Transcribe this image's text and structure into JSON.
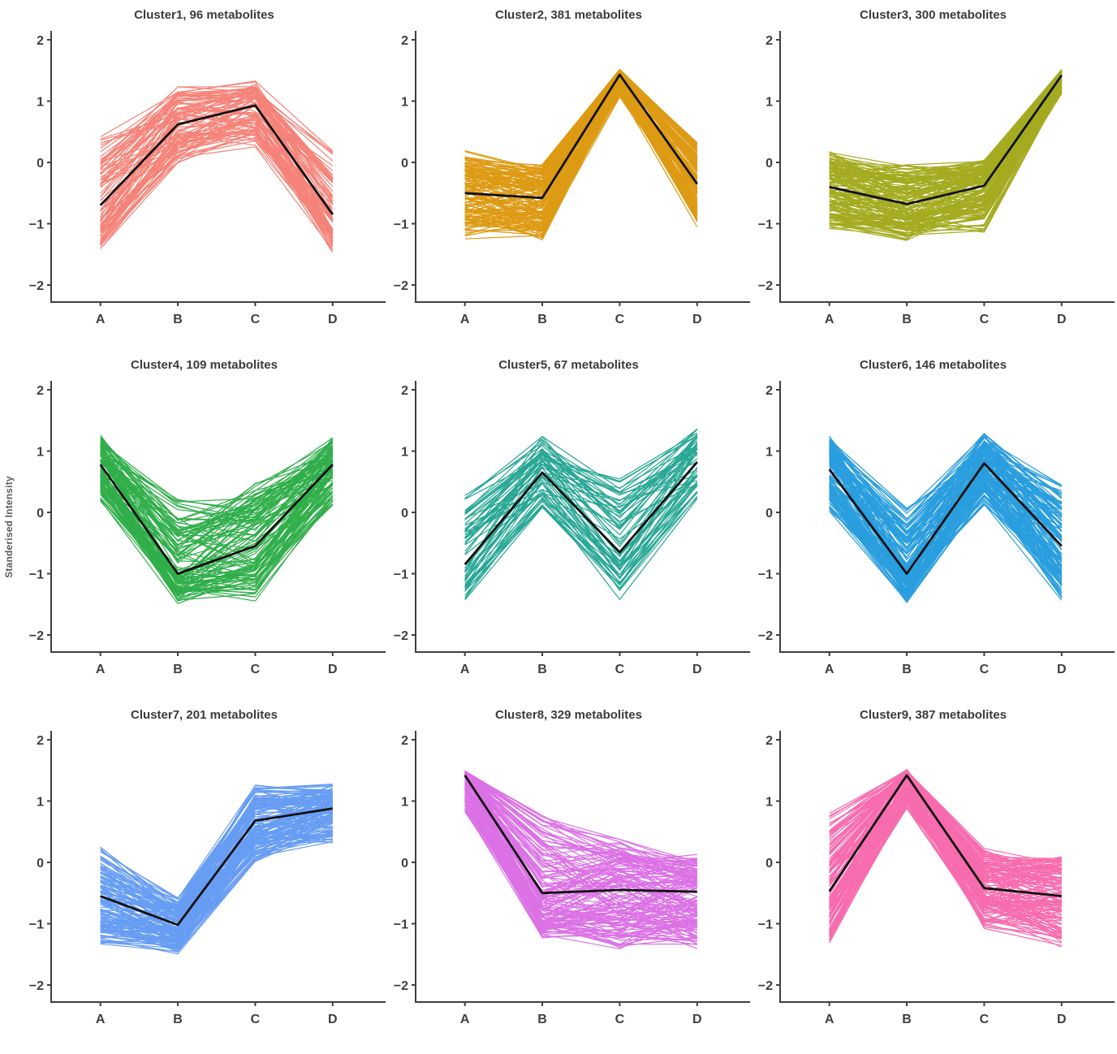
{
  "figure": {
    "ylabel": "Standerised Intensity",
    "categories": [
      "A",
      "B",
      "C",
      "D"
    ],
    "y_ticks": [
      2,
      1,
      0,
      -1,
      -2
    ],
    "ylim": [
      -2,
      2
    ],
    "axis_color": "#3f3f3f",
    "tick_label_color": "#3f3f3f",
    "title_color": "#3b3b3b",
    "mean_line_color": "#101010",
    "background": "#ffffff",
    "grid": "off",
    "legend": "none"
  },
  "chart_data": [
    {
      "type": "line",
      "title": "Cluster1, 96 metabolites",
      "cluster": "Cluster1",
      "n_metabolites": 96,
      "color": "#F5796E",
      "categories": [
        "A",
        "B",
        "C",
        "D"
      ],
      "xlabel": "",
      "ylabel": "Standerised Intensity",
      "ylim": [
        -2,
        2
      ],
      "series": [
        {
          "name": "mean",
          "values": [
            -0.7,
            0.62,
            0.93,
            -0.85
          ]
        },
        {
          "name": "envelope_min",
          "values": [
            -1.45,
            -0.05,
            0.25,
            -1.5
          ]
        },
        {
          "name": "envelope_max",
          "values": [
            0.6,
            1.28,
            1.38,
            0.25
          ]
        }
      ]
    },
    {
      "type": "line",
      "title": "Cluster2, 381 metabolites",
      "cluster": "Cluster2",
      "n_metabolites": 381,
      "color": "#DB9200",
      "categories": [
        "A",
        "B",
        "C",
        "D"
      ],
      "xlabel": "",
      "ylabel": "Standerised Intensity",
      "ylim": [
        -2,
        2
      ],
      "series": [
        {
          "name": "mean",
          "values": [
            -0.5,
            -0.58,
            1.43,
            -0.35
          ]
        },
        {
          "name": "envelope_min",
          "values": [
            -1.28,
            -1.3,
            1.05,
            -1.15
          ]
        },
        {
          "name": "envelope_max",
          "values": [
            0.2,
            0.0,
            1.52,
            0.35
          ]
        }
      ]
    },
    {
      "type": "line",
      "title": "Cluster3, 300 metabolites",
      "cluster": "Cluster3",
      "n_metabolites": 300,
      "color": "#9DA40E",
      "categories": [
        "A",
        "B",
        "C",
        "D"
      ],
      "xlabel": "",
      "ylabel": "Standerised Intensity",
      "ylim": [
        -2,
        2
      ],
      "series": [
        {
          "name": "mean",
          "values": [
            -0.4,
            -0.68,
            -0.38,
            1.42
          ]
        },
        {
          "name": "envelope_min",
          "values": [
            -1.1,
            -1.3,
            -1.15,
            1.1
          ]
        },
        {
          "name": "envelope_max",
          "values": [
            0.25,
            0.0,
            0.05,
            1.52
          ]
        }
      ]
    },
    {
      "type": "line",
      "title": "Cluster4, 109 metabolites",
      "cluster": "Cluster4",
      "n_metabolites": 109,
      "color": "#1FA83B",
      "categories": [
        "A",
        "B",
        "C",
        "D"
      ],
      "xlabel": "",
      "ylabel": "Standerised Intensity",
      "ylim": [
        -2,
        2
      ],
      "series": [
        {
          "name": "mean",
          "values": [
            0.78,
            -1.0,
            -0.55,
            0.78
          ]
        },
        {
          "name": "envelope_min",
          "values": [
            0.15,
            -1.5,
            -1.45,
            0.1
          ]
        },
        {
          "name": "envelope_max",
          "values": [
            1.3,
            0.25,
            0.5,
            1.25
          ]
        }
      ]
    },
    {
      "type": "line",
      "title": "Cluster5, 67 metabolites",
      "cluster": "Cluster5",
      "n_metabolites": 67,
      "color": "#16A08C",
      "categories": [
        "A",
        "B",
        "C",
        "D"
      ],
      "xlabel": "",
      "ylabel": "Standerised Intensity",
      "ylim": [
        -2,
        2
      ],
      "series": [
        {
          "name": "mean",
          "values": [
            -0.85,
            0.65,
            -0.65,
            0.82
          ]
        },
        {
          "name": "envelope_min",
          "values": [
            -1.5,
            0.0,
            -1.45,
            0.15
          ]
        },
        {
          "name": "envelope_max",
          "values": [
            0.35,
            1.3,
            0.65,
            1.38
          ]
        }
      ]
    },
    {
      "type": "line",
      "title": "Cluster6, 146 metabolites",
      "cluster": "Cluster6",
      "n_metabolites": 146,
      "color": "#1896DC",
      "categories": [
        "A",
        "B",
        "C",
        "D"
      ],
      "xlabel": "",
      "ylabel": "Standerised Intensity",
      "ylim": [
        -2,
        2
      ],
      "series": [
        {
          "name": "mean",
          "values": [
            0.7,
            -1.0,
            0.8,
            -0.55
          ]
        },
        {
          "name": "envelope_min",
          "values": [
            0.0,
            -1.5,
            0.1,
            -1.45
          ]
        },
        {
          "name": "envelope_max",
          "values": [
            1.3,
            0.1,
            1.3,
            0.5
          ]
        }
      ]
    },
    {
      "type": "line",
      "title": "Cluster7, 201 metabolites",
      "cluster": "Cluster7",
      "n_metabolites": 201,
      "color": "#5B95F2",
      "categories": [
        "A",
        "B",
        "C",
        "D"
      ],
      "xlabel": "",
      "ylabel": "Standerised Intensity",
      "ylim": [
        -2,
        2
      ],
      "series": [
        {
          "name": "mean",
          "values": [
            -0.55,
            -1.02,
            0.68,
            0.88
          ]
        },
        {
          "name": "envelope_min",
          "values": [
            -1.35,
            -1.5,
            0.0,
            0.3
          ]
        },
        {
          "name": "envelope_max",
          "values": [
            0.3,
            -0.55,
            1.28,
            1.3
          ]
        }
      ]
    },
    {
      "type": "line",
      "title": "Cluster8, 329 metabolites",
      "cluster": "Cluster8",
      "n_metabolites": 329,
      "color": "#D966E3",
      "categories": [
        "A",
        "B",
        "C",
        "D"
      ],
      "xlabel": "",
      "ylabel": "Standerised Intensity",
      "ylim": [
        -2,
        2
      ],
      "series": [
        {
          "name": "mean",
          "values": [
            1.42,
            -0.5,
            -0.45,
            -0.48
          ]
        },
        {
          "name": "envelope_min",
          "values": [
            0.75,
            -1.25,
            -1.45,
            -1.45
          ]
        },
        {
          "name": "envelope_max",
          "values": [
            1.5,
            0.85,
            0.4,
            0.15
          ]
        }
      ]
    },
    {
      "type": "line",
      "title": "Cluster9, 387 metabolites",
      "cluster": "Cluster9",
      "n_metabolites": 387,
      "color": "#F760A8",
      "categories": [
        "A",
        "B",
        "C",
        "D"
      ],
      "xlabel": "",
      "ylabel": "Standerised Intensity",
      "ylim": [
        -2,
        2
      ],
      "series": [
        {
          "name": "mean",
          "values": [
            -0.47,
            1.42,
            -0.42,
            -0.55
          ]
        },
        {
          "name": "envelope_min",
          "values": [
            -1.35,
            0.85,
            -1.1,
            -1.4
          ]
        },
        {
          "name": "envelope_max",
          "values": [
            0.9,
            1.52,
            0.25,
            0.2
          ]
        }
      ]
    }
  ]
}
